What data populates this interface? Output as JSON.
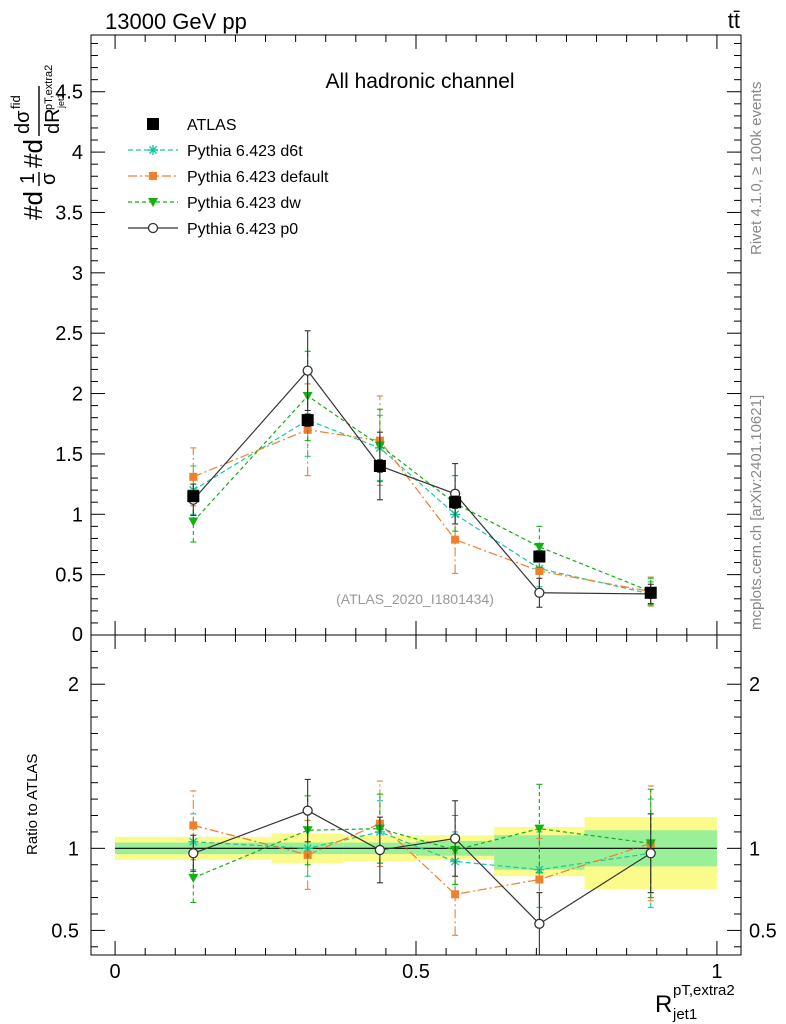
{
  "header": {
    "left_title": "13000 GeV pp",
    "right_title": "tt̄"
  },
  "side_labels": {
    "rivet": "Rivet 4.1.0, ≥ 100k events",
    "mcplots": "mcplots.cern.ch [arXiv:2401.10621]"
  },
  "colors": {
    "atlas": "#000000",
    "d6t": "#17c9a0",
    "default": "#f07f2e",
    "dw": "#12b012",
    "p0": "#333333",
    "band_inner": "#99f099",
    "band_outer": "#fbfb8c"
  },
  "chart_data": [
    {
      "type": "line",
      "panel": "main",
      "title": "All hadronic channel",
      "ylabel": "#d 1/σ #d dσ^fid / dR^{pT,extra2}_{jet1}",
      "analysis_label": "(ATLAS_2020_I1801434)",
      "xlim": [
        -0.04,
        1.04
      ],
      "ylim": [
        0,
        4.97
      ],
      "yticks": [
        0.5,
        1,
        1.5,
        2,
        2.5,
        3,
        3.5,
        4,
        4.5
      ],
      "ytick_labels": [
        "0.5",
        "1",
        "1.5",
        "2",
        "2.5",
        "3",
        "3.5",
        "4",
        "4.5"
      ],
      "bottom_tick_label": "0",
      "x": [
        0.13,
        0.32,
        0.44,
        0.565,
        0.705,
        0.89
      ],
      "series": [
        {
          "name": "ATLAS",
          "key": "atlas",
          "marker": "square",
          "values": [
            1.15,
            1.78,
            1.4,
            1.1,
            0.65,
            0.35
          ],
          "errors": [
            0.03,
            0.05,
            0.05,
            0.05,
            0.03,
            0.02
          ]
        },
        {
          "name": "Pythia 6.423 d6t",
          "key": "d6t",
          "marker": "star",
          "dash": "5,3",
          "values": [
            1.2,
            1.78,
            1.55,
            1.0,
            0.55,
            0.34
          ],
          "errors": [
            0.2,
            0.3,
            0.27,
            0.2,
            0.15,
            0.1
          ]
        },
        {
          "name": "Pythia 6.423 default",
          "key": "default",
          "marker": "filled-square",
          "dash": "9,3,2,3",
          "values": [
            1.31,
            1.7,
            1.61,
            0.79,
            0.53,
            0.36
          ],
          "errors": [
            0.24,
            0.38,
            0.37,
            0.28,
            0.16,
            0.12
          ]
        },
        {
          "name": "Pythia 6.423 dw",
          "key": "dw",
          "marker": "triangle-down",
          "dash": "4,3",
          "values": [
            0.94,
            1.98,
            1.57,
            1.09,
            0.73,
            0.36
          ],
          "errors": [
            0.17,
            0.37,
            0.3,
            0.23,
            0.17,
            0.11
          ]
        },
        {
          "name": "Pythia 6.423 p0",
          "key": "p0",
          "marker": "open-circle",
          "dash": "",
          "values": [
            1.12,
            2.19,
            1.4,
            1.17,
            0.35,
            0.34
          ],
          "errors": [
            0.13,
            0.33,
            0.28,
            0.25,
            0.12,
            0.08
          ]
        }
      ]
    },
    {
      "type": "line",
      "panel": "ratio",
      "ylabel": "Ratio to ATLAS",
      "xlabel": "R^{pT,extra2}_{jet1}",
      "xlim": [
        -0.04,
        1.04
      ],
      "ylim": [
        0.35,
        2.3
      ],
      "yticks": [
        0.5,
        1,
        2
      ],
      "ytick_labels": [
        "0.5",
        "1",
        "2"
      ],
      "xticks": [
        0,
        0.5,
        1
      ],
      "xtick_labels": [
        "0",
        "0.5",
        "1"
      ],
      "bands": [
        {
          "x0": 0.0,
          "x1": 0.26,
          "inner": [
            0.965,
            1.035
          ],
          "outer": [
            0.93,
            1.07
          ]
        },
        {
          "x0": 0.26,
          "x1": 0.38,
          "inner": [
            0.965,
            1.035
          ],
          "outer": [
            0.91,
            1.09
          ]
        },
        {
          "x0": 0.38,
          "x1": 0.5,
          "inner": [
            0.965,
            1.035
          ],
          "outer": [
            0.92,
            1.08
          ]
        },
        {
          "x0": 0.5,
          "x1": 0.63,
          "inner": [
            0.955,
            1.045
          ],
          "outer": [
            0.93,
            1.08
          ]
        },
        {
          "x0": 0.63,
          "x1": 0.78,
          "inner": [
            0.87,
            1.08
          ],
          "outer": [
            0.83,
            1.13
          ]
        },
        {
          "x0": 0.78,
          "x1": 1.0,
          "inner": [
            0.89,
            1.11
          ],
          "outer": [
            0.75,
            1.19
          ]
        }
      ],
      "x": [
        0.13,
        0.32,
        0.44,
        0.565,
        0.705,
        0.89
      ],
      "series": [
        {
          "name": "Pythia 6.423 d6t",
          "key": "d6t",
          "marker": "star",
          "dash": "5,3",
          "values": [
            1.04,
            1.0,
            1.1,
            0.92,
            0.87,
            0.97
          ],
          "errors": [
            0.17,
            0.17,
            0.19,
            0.18,
            0.23,
            0.33
          ]
        },
        {
          "name": "Pythia 6.423 default",
          "key": "default",
          "marker": "filled-square",
          "dash": "9,3,2,3",
          "values": [
            1.14,
            0.96,
            1.15,
            0.72,
            0.81,
            1.03
          ],
          "errors": [
            0.21,
            0.21,
            0.26,
            0.25,
            0.25,
            0.35
          ]
        },
        {
          "name": "Pythia 6.423 dw",
          "key": "dw",
          "marker": "triangle-down",
          "dash": "4,3",
          "values": [
            0.82,
            1.11,
            1.12,
            0.99,
            1.12,
            1.03
          ],
          "errors": [
            0.15,
            0.21,
            0.21,
            0.21,
            0.27,
            0.33
          ]
        },
        {
          "name": "Pythia 6.423 p0",
          "key": "p0",
          "marker": "open-circle",
          "dash": "",
          "values": [
            0.97,
            1.23,
            0.99,
            1.06,
            0.54,
            0.97
          ],
          "errors": [
            0.11,
            0.19,
            0.2,
            0.23,
            0.19,
            0.24
          ]
        }
      ]
    }
  ]
}
